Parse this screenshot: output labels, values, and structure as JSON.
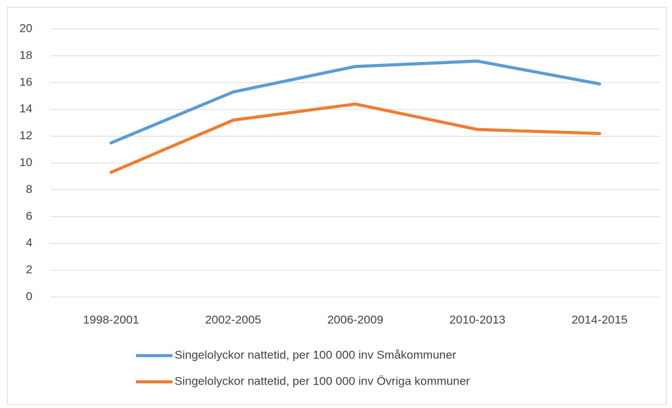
{
  "chart_data": {
    "type": "line",
    "categories": [
      "1998-2001",
      "2002-2005",
      "2006-2009",
      "2010-2013",
      "2014-2015"
    ],
    "series": [
      {
        "name": "Singelolyckor nattetid, per 100 000 inv Småkommuner",
        "color": "#5b9bd5",
        "values": [
          11.5,
          15.3,
          17.2,
          17.6,
          15.9
        ]
      },
      {
        "name": "Singelolyckor nattetid, per 100 000 inv Övriga kommuner",
        "color": "#ed7d31",
        "values": [
          9.3,
          13.2,
          14.4,
          12.5,
          12.2
        ]
      }
    ],
    "ylim": [
      0,
      20
    ],
    "yticks": [
      0,
      2,
      4,
      6,
      8,
      10,
      12,
      14,
      16,
      18,
      20
    ],
    "grid": true,
    "legend": "bottom"
  }
}
